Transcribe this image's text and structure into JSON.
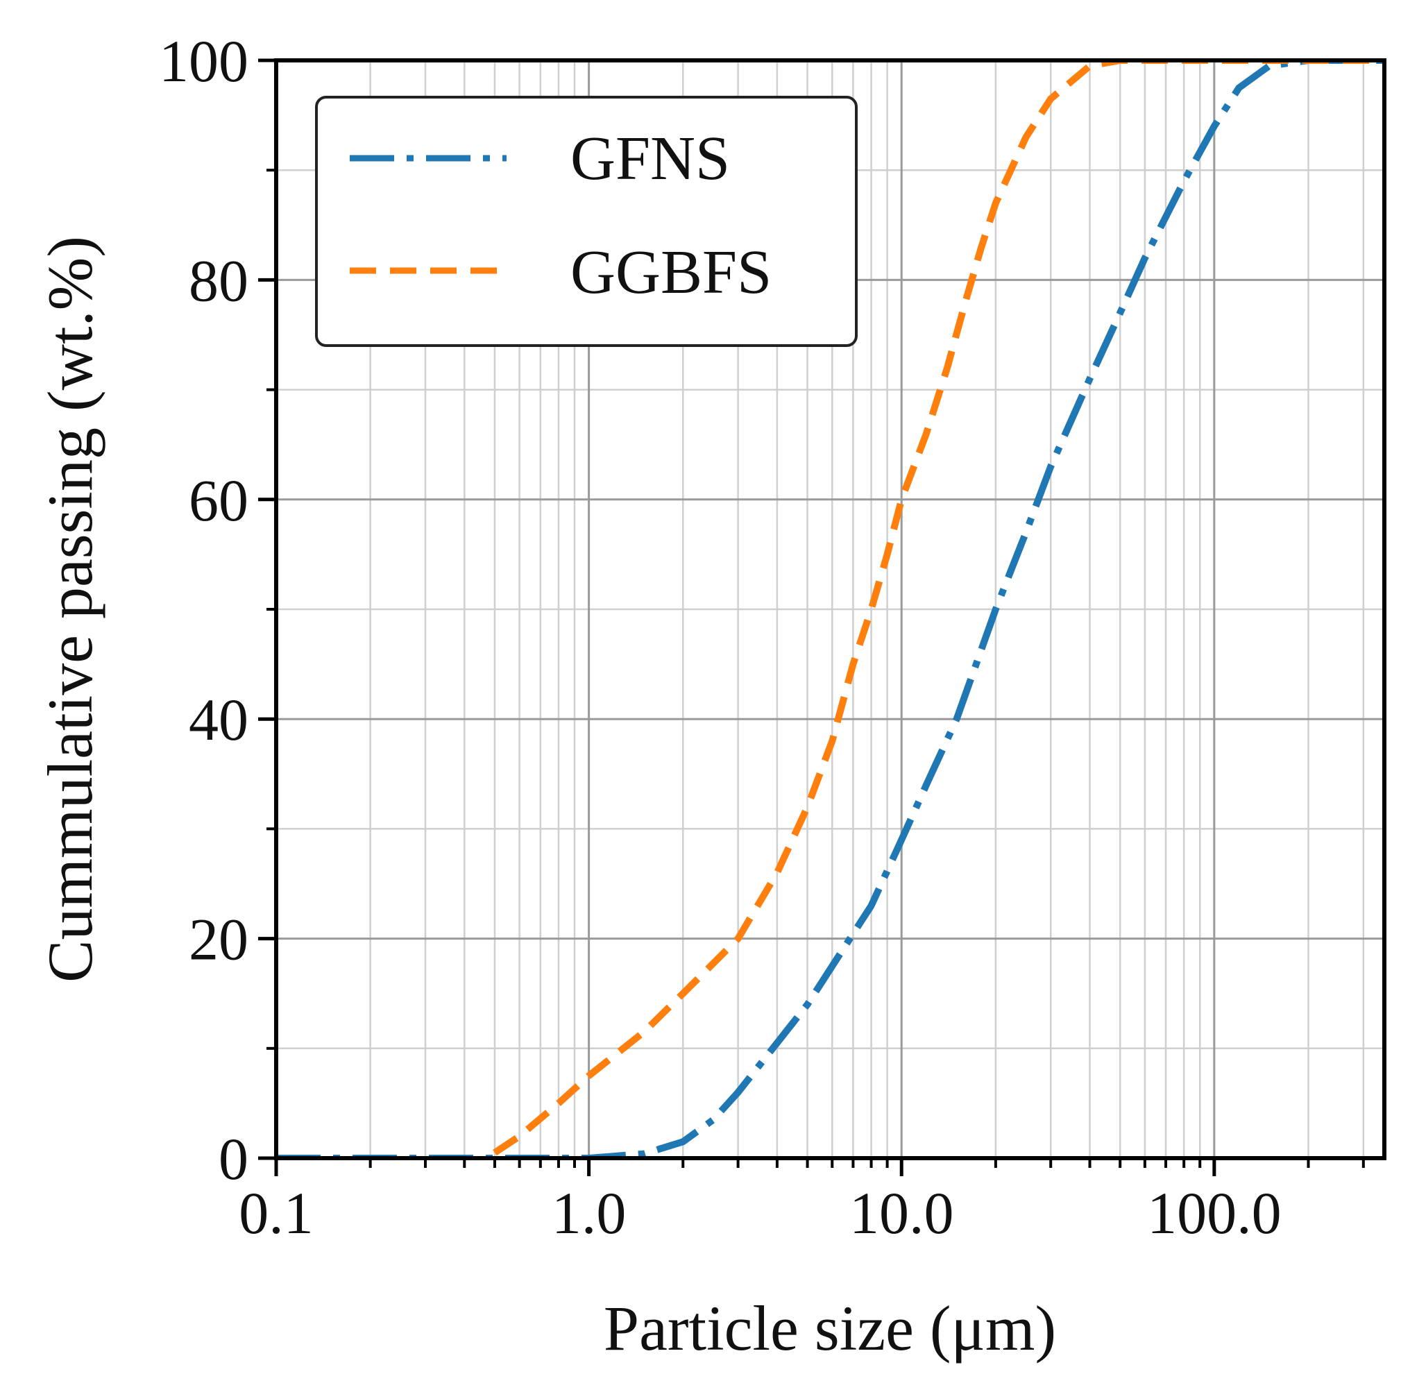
{
  "chart_data": {
    "type": "line",
    "xlabel": "Particle size (μm)",
    "ylabel": "Cummulative passing (wt.%)",
    "x_scale": "log",
    "xlim": [
      0.1,
      350
    ],
    "ylim": [
      0,
      100
    ],
    "x_ticks": [
      0.1,
      1.0,
      10.0,
      100.0
    ],
    "x_tick_labels": [
      "0.1",
      "1.0",
      "10.0",
      "100.0"
    ],
    "y_ticks": [
      0,
      20,
      40,
      60,
      80,
      100
    ],
    "y_tick_labels": [
      "0",
      "20",
      "40",
      "60",
      "80",
      "100"
    ],
    "grid": true,
    "legend_position": "top-left",
    "series": [
      {
        "name": "GFNS",
        "color": "#1f77b4",
        "linestyle": "dash-dot",
        "points": [
          [
            0.1,
            0
          ],
          [
            0.2,
            0
          ],
          [
            0.5,
            0
          ],
          [
            1.0,
            0
          ],
          [
            1.5,
            0.4
          ],
          [
            2.0,
            1.5
          ],
          [
            2.5,
            3.5
          ],
          [
            3.0,
            6
          ],
          [
            4.0,
            10.5
          ],
          [
            5.0,
            14
          ],
          [
            6.0,
            17.5
          ],
          [
            8.0,
            23
          ],
          [
            10.0,
            29
          ],
          [
            12.0,
            34
          ],
          [
            15.0,
            40
          ],
          [
            20.0,
            50
          ],
          [
            25.0,
            57
          ],
          [
            30.0,
            63
          ],
          [
            40.0,
            71
          ],
          [
            50.0,
            77
          ],
          [
            60.0,
            82
          ],
          [
            80.0,
            89
          ],
          [
            100.0,
            94
          ],
          [
            120.0,
            97.5
          ],
          [
            150.0,
            99.5
          ],
          [
            200.0,
            100
          ],
          [
            350.0,
            100
          ]
        ]
      },
      {
        "name": "GGBFS",
        "color": "#ff7f0e",
        "linestyle": "dashed",
        "points": [
          [
            0.5,
            0.5
          ],
          [
            0.6,
            2
          ],
          [
            0.8,
            5
          ],
          [
            1.0,
            7.5
          ],
          [
            1.5,
            11.5
          ],
          [
            2.0,
            15
          ],
          [
            3.0,
            20
          ],
          [
            4.0,
            26
          ],
          [
            5.0,
            32
          ],
          [
            6.0,
            38
          ],
          [
            7.0,
            45
          ],
          [
            8.0,
            50
          ],
          [
            9.0,
            55
          ],
          [
            10.0,
            60
          ],
          [
            12.0,
            66
          ],
          [
            14.0,
            72
          ],
          [
            16.0,
            78
          ],
          [
            18.0,
            83
          ],
          [
            20.0,
            87
          ],
          [
            25.0,
            93
          ],
          [
            30.0,
            96.5
          ],
          [
            40.0,
            99.5
          ],
          [
            50.0,
            100
          ],
          [
            350.0,
            100
          ]
        ]
      }
    ]
  }
}
